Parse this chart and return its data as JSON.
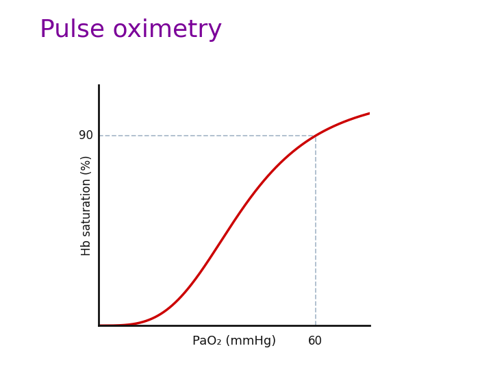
{
  "title": "Pulse oximetry",
  "title_color": "#7B0099",
  "title_fontsize": 26,
  "xlabel": "PaO₂ (mmHg)",
  "ylabel": "Hb saturation (%)",
  "xlabel_fontsize": 13,
  "ylabel_fontsize": 12,
  "curve_color": "#CC0000",
  "curve_linewidth": 2.5,
  "dashed_color": "#AABBCC",
  "annotation_90_label": "90",
  "annotation_60_label": "60",
  "annotation_fontsize": 12,
  "xlim": [
    0,
    75
  ],
  "ylim": [
    0,
    102
  ],
  "axis_color": "#111111",
  "background_color": "#FFFFFF",
  "hill_n": 3.5,
  "hill_p50": 40,
  "saturation_max": 100,
  "x_ref": 60,
  "y_ref_target": 90
}
